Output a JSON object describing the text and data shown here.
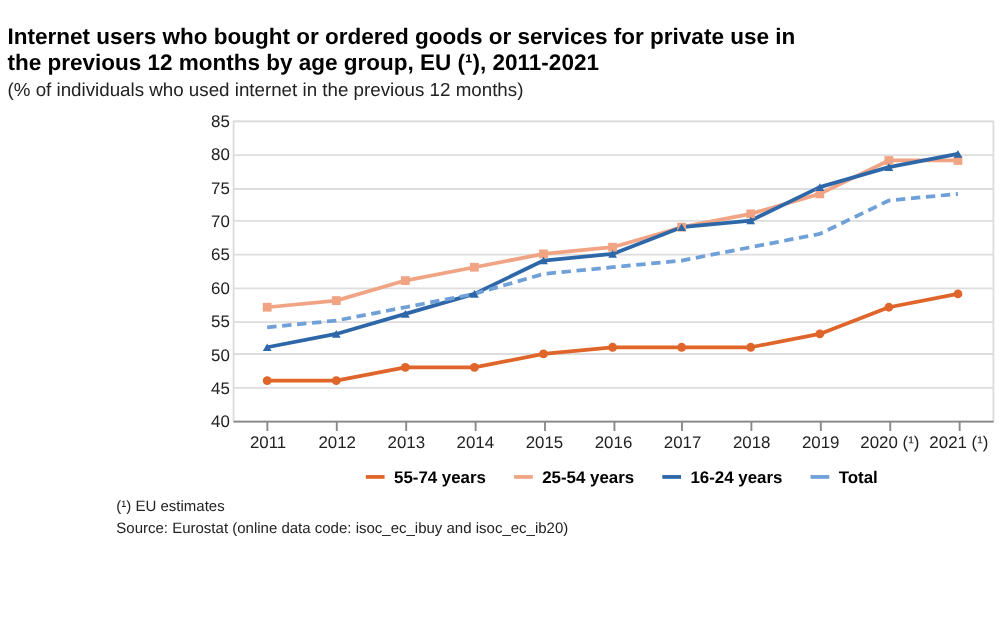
{
  "chart_data": {
    "type": "line",
    "title": "Internet users who bought or ordered goods or services for private use in the previous 12 months by age group, EU (¹), 2011-2021",
    "subtitle": "(% of individuals who used internet in the previous 12 months)",
    "categories": [
      "2011",
      "2012",
      "2013",
      "2014",
      "2015",
      "2016",
      "2017",
      "2018",
      "2019",
      "2020 (¹)",
      "2021 (¹)"
    ],
    "series": [
      {
        "name": "55-74 years",
        "color": "#e0652a",
        "marker": "circle",
        "line_style": "solid",
        "values": [
          46,
          46,
          48,
          48,
          50,
          51,
          51,
          51,
          53,
          57,
          59
        ]
      },
      {
        "name": "25-54 years",
        "color": "#f0a484",
        "marker": "square",
        "line_style": "solid",
        "values": [
          57,
          58,
          61,
          63,
          65,
          66,
          69,
          71,
          74,
          79,
          79
        ]
      },
      {
        "name": "16-24 years",
        "color": "#2e67a8",
        "marker": "triangle",
        "line_style": "solid",
        "values": [
          51,
          53,
          56,
          59,
          64,
          65,
          69,
          70,
          75,
          78,
          80
        ]
      },
      {
        "name": "Total",
        "color": "#6fa0d8",
        "marker": "none",
        "line_style": "dashed",
        "values": [
          54,
          55,
          57,
          59,
          62,
          63,
          64,
          66,
          68,
          73,
          74
        ]
      }
    ],
    "ylim": [
      40,
      85
    ],
    "yticks": [
      40,
      45,
      50,
      55,
      60,
      65,
      70,
      75,
      80,
      85
    ],
    "grid": "y",
    "legend": "bottom",
    "annotations": [
      "(¹) EU estimates",
      "Source: Eurostat (online data code:  isoc_ec_ibuy and isoc_ec_ib20)"
    ]
  }
}
